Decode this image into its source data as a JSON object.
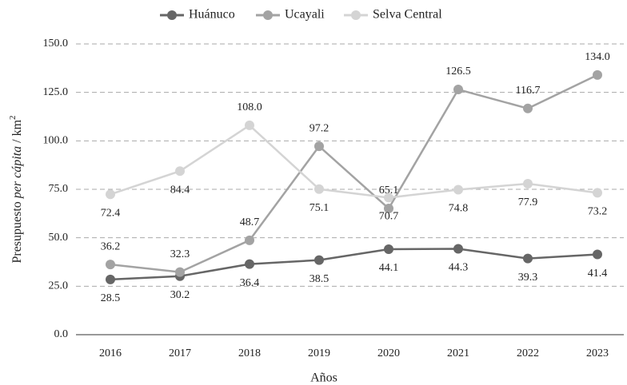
{
  "chart_data": {
    "type": "line",
    "xlabel": "Años",
    "ylabel": [
      "Presupuesto ",
      "per cápita",
      " / km",
      "2"
    ],
    "categories": [
      "2016",
      "2017",
      "2018",
      "2019",
      "2020",
      "2021",
      "2022",
      "2023"
    ],
    "series": [
      {
        "name": "Huánuco",
        "color": "#666666",
        "values": [
          28.5,
          30.2,
          36.4,
          38.5,
          44.1,
          44.3,
          39.3,
          41.4
        ],
        "value_labels": [
          "28.5",
          "30.2",
          "36.4",
          "38.5",
          "44.1",
          "44.3",
          "39.3",
          "41.4"
        ]
      },
      {
        "name": "Ucayali",
        "color": "#a3a3a3",
        "values": [
          36.2,
          32.3,
          48.7,
          97.2,
          65.1,
          126.5,
          116.7,
          134.0
        ],
        "value_labels": [
          "36.2",
          "32.3",
          "48.7",
          "97.2",
          "65.1",
          "126.5",
          "116.7",
          "134.0"
        ]
      },
      {
        "name": "Selva Central",
        "color": "#d4d4d4",
        "values": [
          72.4,
          84.4,
          108.0,
          75.1,
          70.7,
          74.8,
          77.9,
          73.2
        ],
        "value_labels": [
          "72.4",
          "84.4",
          "108.0",
          "75.1",
          "70.7",
          "74.8",
          "77.9",
          "73.2"
        ]
      }
    ],
    "ylim": [
      0,
      150
    ],
    "yticks": [
      {
        "value": 0,
        "label": "0.0"
      },
      {
        "value": 25,
        "label": "25.0"
      },
      {
        "value": 50,
        "label": "50.0"
      },
      {
        "value": 75,
        "label": "75.0"
      },
      {
        "value": 100,
        "label": "100.0"
      },
      {
        "value": 125,
        "label": "125.0"
      },
      {
        "value": 150,
        "label": "150.0"
      }
    ],
    "grid": true,
    "legend": "top"
  }
}
